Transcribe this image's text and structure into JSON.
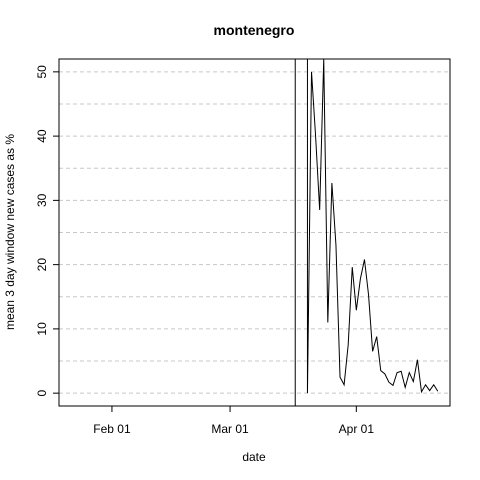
{
  "chart_data": {
    "type": "line",
    "title": "montenegro",
    "xlabel": "date",
    "ylabel": "mean  3  day window new cases as %",
    "x_ticks": [
      {
        "date": "2020-02-01",
        "label": "Feb 01"
      },
      {
        "date": "2020-03-01",
        "label": "Mar 01"
      },
      {
        "date": "2020-04-01",
        "label": "Apr 01"
      }
    ],
    "y_ticks": [
      0,
      10,
      20,
      30,
      40,
      50
    ],
    "xlim": [
      "2020-01-19",
      "2020-04-24"
    ],
    "ylim": [
      -2,
      52
    ],
    "grid": {
      "major": [
        0,
        10,
        20,
        30,
        40,
        50
      ],
      "minor": [
        5,
        15,
        25,
        35,
        45
      ],
      "style": "dashed"
    },
    "line_color": "#000000",
    "series": [
      {
        "points": [
          {
            "x": "2020-03-17",
            "y": -2
          },
          {
            "x": "2020-03-17",
            "y": 52
          },
          {
            "x": "2020-03-20",
            "y": 52
          },
          {
            "x": "2020-03-20",
            "y": 0
          },
          {
            "x": "2020-03-21",
            "y": 50
          },
          {
            "x": "2020-03-22",
            "y": 40
          },
          {
            "x": "2020-03-23",
            "y": 28.5
          },
          {
            "x": "2020-03-24",
            "y": 52
          },
          {
            "x": "2020-03-25",
            "y": 11
          },
          {
            "x": "2020-03-26",
            "y": 32.7
          },
          {
            "x": "2020-03-27",
            "y": 23
          },
          {
            "x": "2020-03-28",
            "y": 2.5
          },
          {
            "x": "2020-03-29",
            "y": 1.3
          },
          {
            "x": "2020-03-30",
            "y": 7.5
          },
          {
            "x": "2020-03-31",
            "y": 19.6
          },
          {
            "x": "2020-04-01",
            "y": 12.9
          },
          {
            "x": "2020-04-02",
            "y": 17.8
          },
          {
            "x": "2020-04-03",
            "y": 20.8
          },
          {
            "x": "2020-04-04",
            "y": 15.3
          },
          {
            "x": "2020-04-05",
            "y": 6.5
          },
          {
            "x": "2020-04-06",
            "y": 8.8
          },
          {
            "x": "2020-04-07",
            "y": 3.5
          },
          {
            "x": "2020-04-08",
            "y": 3
          },
          {
            "x": "2020-04-09",
            "y": 1.7
          },
          {
            "x": "2020-04-10",
            "y": 1.2
          },
          {
            "x": "2020-04-11",
            "y": 3.2
          },
          {
            "x": "2020-04-12",
            "y": 3.4
          },
          {
            "x": "2020-04-13",
            "y": 0.9
          },
          {
            "x": "2020-04-14",
            "y": 3.2
          },
          {
            "x": "2020-04-15",
            "y": 1.8
          },
          {
            "x": "2020-04-16",
            "y": 5.2
          },
          {
            "x": "2020-04-17",
            "y": 0.2
          },
          {
            "x": "2020-04-18",
            "y": 1.3
          },
          {
            "x": "2020-04-19",
            "y": 0.4
          },
          {
            "x": "2020-04-20",
            "y": 1.3
          },
          {
            "x": "2020-04-21",
            "y": 0.3
          }
        ]
      }
    ]
  }
}
